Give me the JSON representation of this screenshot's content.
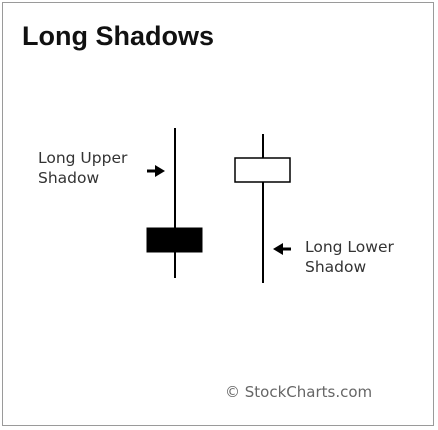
{
  "title": "Long Shadows",
  "annotations": {
    "upper_shadow": {
      "line1": "Long Upper",
      "line2": "Shadow"
    },
    "lower_shadow": {
      "line1": "Long Lower",
      "line2": "Shadow"
    }
  },
  "copyright": "© StockCharts.com",
  "candlesticks": [
    {
      "name": "long-upper-shadow-candle",
      "type": "bearish",
      "body_color": "#000000"
    },
    {
      "name": "long-lower-shadow-candle",
      "type": "bullish",
      "body_color": "#ffffff"
    }
  ],
  "colors": {
    "stroke": "#000000",
    "text": "#333333",
    "frame": "#9a9a9a"
  }
}
